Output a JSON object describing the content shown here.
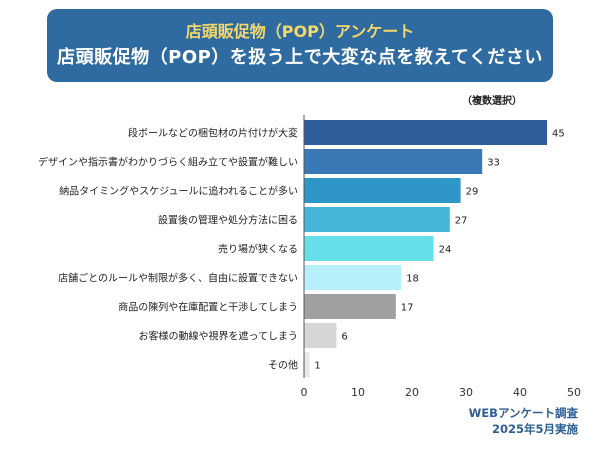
{
  "header": {
    "subtitle": "店頭販促物（POP）アンケート",
    "title": "店頭販促物（POP）を扱う上で大変な点を教えてください"
  },
  "note": "（複数選択）",
  "footer": {
    "line1": "WEBアンケート調査",
    "line2": "2025年5月実施"
  },
  "chart_data": {
    "type": "bar",
    "orientation": "horizontal",
    "categories": [
      "段ボールなどの梱包材の片付けが大変",
      "デザインや指示書がわかりづらく組み立てや設置が難しい",
      "納品タイミングやスケジュールに追われることが多い",
      "設置後の管理や処分方法に困る",
      "売り場が狭くなる",
      "店舗ごとのルールや制限が多く、自由に設置できない",
      "商品の陳列や在庫配置と干渉してしまう",
      "お客様の動線や視界を遮ってしまう",
      "その他"
    ],
    "values": [
      45,
      33,
      29,
      27,
      24,
      18,
      17,
      6,
      1
    ],
    "colors": [
      "#2f5d9c",
      "#3a79b5",
      "#2f97c8",
      "#45b6d8",
      "#66e0e8",
      "#b7f0fa",
      "#a0a0a0",
      "#d6d6d6",
      "#e6e6e6"
    ],
    "xticks": [
      0,
      10,
      20,
      30,
      40,
      50
    ],
    "xlim": [
      0,
      50
    ],
    "grid": false
  }
}
